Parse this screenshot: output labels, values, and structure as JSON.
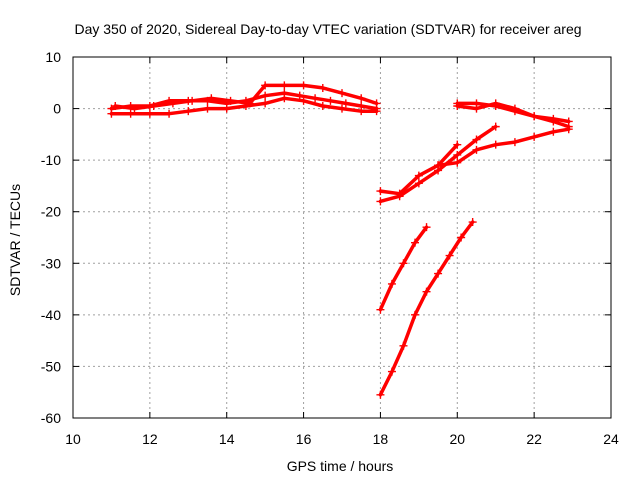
{
  "chart_data": {
    "type": "scatter",
    "title": "Day 350 of 2020, Sidereal Day-to-day VTEC variation (SDTVAR) for receiver areg",
    "xlabel": "GPS time / hours",
    "ylabel": "SDTVAR / TECUs",
    "xlim": [
      10,
      24
    ],
    "ylim": [
      -60,
      10
    ],
    "xticks": [
      10,
      12,
      14,
      16,
      18,
      20,
      22,
      24
    ],
    "yticks": [
      -60,
      -50,
      -40,
      -30,
      -20,
      -10,
      0,
      10
    ],
    "grid": true,
    "legend": "none",
    "marker": "plus",
    "color": "#ff0000",
    "series": [
      {
        "x": [
          11.0,
          11.5,
          12.0,
          12.5,
          13.0,
          13.5,
          14.0,
          14.5,
          15.0,
          15.5,
          15.9,
          16.3,
          16.7,
          17.1,
          17.5,
          17.9
        ],
        "y": [
          0.0,
          0.5,
          0.5,
          1.5,
          1.5,
          1.5,
          1.0,
          1.5,
          2.5,
          3.0,
          2.5,
          2.0,
          1.5,
          1.0,
          0.5,
          0.0
        ]
      },
      {
        "x": [
          11.0,
          11.5,
          12.0,
          12.5,
          13.0,
          13.5,
          14.0,
          14.5,
          15.0,
          15.5,
          16.0,
          16.5,
          17.0,
          17.5,
          17.9
        ],
        "y": [
          -1.0,
          -1.0,
          -1.0,
          -1.0,
          -0.5,
          0.0,
          0.0,
          0.5,
          1.0,
          2.0,
          1.5,
          0.5,
          0.0,
          -0.5,
          -0.5
        ]
      },
      {
        "x": [
          11.1,
          11.6,
          12.1,
          12.6,
          13.1,
          13.6,
          14.1,
          14.6,
          15.0,
          15.5,
          16.0,
          16.5,
          17.0,
          17.5,
          17.9
        ],
        "y": [
          0.5,
          0.0,
          0.5,
          1.0,
          1.5,
          2.0,
          1.5,
          1.0,
          4.5,
          4.5,
          4.5,
          4.0,
          3.0,
          2.0,
          1.0
        ]
      },
      {
        "x": [
          18.0,
          18.5,
          19.0,
          19.5,
          20.0,
          20.5,
          21.0
        ],
        "y": [
          -18.0,
          -17.0,
          -14.5,
          -12.0,
          -9.0,
          -6.0,
          -3.5
        ]
      },
      {
        "x": [
          18.0,
          18.5,
          19.0,
          19.5,
          20.0
        ],
        "y": [
          -16.0,
          -16.5,
          -13.0,
          -11.0,
          -7.0
        ]
      },
      {
        "x": [
          19.5,
          20.0,
          20.5,
          21.0,
          21.5,
          22.0,
          22.5,
          22.9
        ],
        "y": [
          -11.0,
          -10.5,
          -8.0,
          -7.0,
          -6.5,
          -5.5,
          -4.5,
          -4.0
        ]
      },
      {
        "x": [
          20.0,
          20.5,
          21.0,
          21.5,
          22.0,
          22.5,
          22.9
        ],
        "y": [
          0.5,
          0.0,
          1.0,
          0.0,
          -1.5,
          -2.5,
          -3.5
        ]
      },
      {
        "x": [
          20.0,
          20.5,
          21.0,
          21.5,
          22.0,
          22.5,
          22.9
        ],
        "y": [
          1.0,
          1.0,
          0.5,
          -0.5,
          -1.5,
          -2.0,
          -2.5
        ]
      },
      {
        "x": [
          18.0,
          18.3,
          18.6,
          18.9,
          19.2
        ],
        "y": [
          -39.0,
          -34.0,
          -30.0,
          -26.0,
          -23.0
        ]
      },
      {
        "x": [
          18.0,
          18.3,
          18.6,
          18.9,
          19.2,
          19.5,
          19.8,
          20.1,
          20.4
        ],
        "y": [
          -55.5,
          -51.0,
          -46.0,
          -40.0,
          -35.5,
          -32.0,
          -28.5,
          -25.0,
          -22.0
        ]
      }
    ]
  }
}
